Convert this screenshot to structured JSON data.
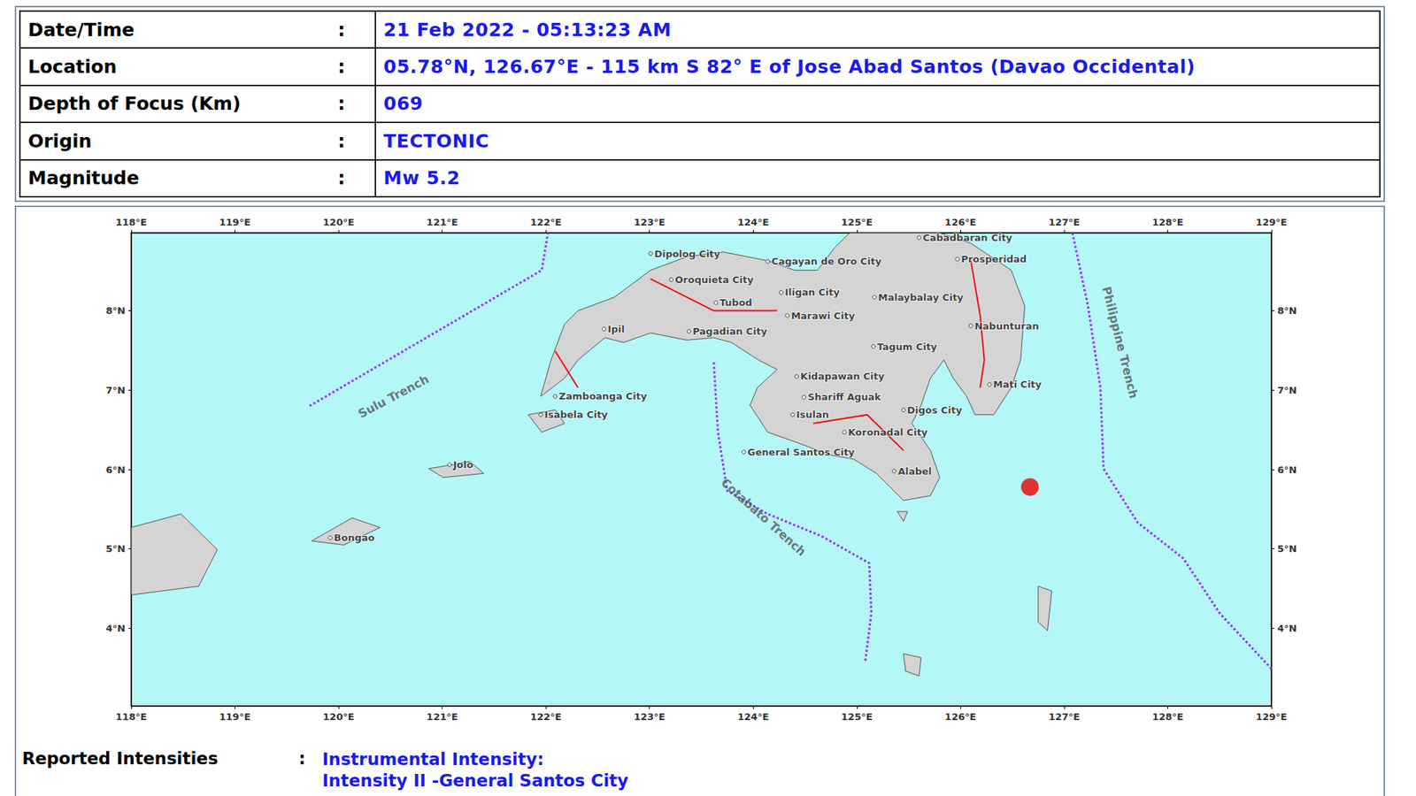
{
  "header": {
    "separator": ":",
    "rows": [
      {
        "label": "Date/Time",
        "value": "21 Feb 2022 - 05:13:23 AM"
      },
      {
        "label": "Location",
        "value": "05.78°N, 126.67°E - 115 km S 82° E of Jose Abad Santos (Davao Occidental)"
      },
      {
        "label": "Depth of Focus (Km)",
        "value": "069"
      },
      {
        "label": "Origin",
        "value": "TECTONIC"
      },
      {
        "label": "Magnitude",
        "value": "Mw 5.2"
      }
    ]
  },
  "chart_data": {
    "type": "map",
    "xlim": [
      118,
      129
    ],
    "xticks": [
      {
        "value": 118,
        "label": "118°E"
      },
      {
        "value": 119,
        "label": "119°E"
      },
      {
        "value": 120,
        "label": "120°E"
      },
      {
        "value": 121,
        "label": "121°E"
      },
      {
        "value": 122,
        "label": "122°E"
      },
      {
        "value": 123,
        "label": "123°E"
      },
      {
        "value": 124,
        "label": "124°E"
      },
      {
        "value": 125,
        "label": "125°E"
      },
      {
        "value": 126,
        "label": "126°E"
      },
      {
        "value": 127,
        "label": "127°E"
      },
      {
        "value": 128,
        "label": "128°E"
      },
      {
        "value": 129,
        "label": "129°E"
      }
    ],
    "ylim": [
      3.02,
      8.98
    ],
    "yticks": [
      {
        "value": 4,
        "label": "4°N"
      },
      {
        "value": 5,
        "label": "5°N"
      },
      {
        "value": 6,
        "label": "6°N"
      },
      {
        "value": 7,
        "label": "7°N"
      },
      {
        "value": 8,
        "label": "8°N"
      }
    ],
    "sea_color": "#b4f7f7",
    "land_color": "#d4d4d4",
    "epicenter": {
      "x": 126.67,
      "y": 5.78,
      "color": "#ee0000"
    },
    "land": [
      [
        [
          121.95,
          6.92
        ],
        [
          122.05,
          7.38
        ],
        [
          122.18,
          7.83
        ],
        [
          122.31,
          8.0
        ],
        [
          122.66,
          8.17
        ],
        [
          123.01,
          8.51
        ],
        [
          123.36,
          8.68
        ],
        [
          123.71,
          8.74
        ],
        [
          124.14,
          8.63
        ],
        [
          124.4,
          8.51
        ],
        [
          124.62,
          8.51
        ],
        [
          124.79,
          8.8
        ],
        [
          124.93,
          8.98
        ],
        [
          125.8,
          8.98
        ],
        [
          126.1,
          8.85
        ],
        [
          126.49,
          8.51
        ],
        [
          126.62,
          8.06
        ],
        [
          126.58,
          7.38
        ],
        [
          126.49,
          7.03
        ],
        [
          126.32,
          6.69
        ],
        [
          126.14,
          6.69
        ],
        [
          126.06,
          6.92
        ],
        [
          125.93,
          7.15
        ],
        [
          125.84,
          7.38
        ],
        [
          125.71,
          7.15
        ],
        [
          125.62,
          6.81
        ],
        [
          125.53,
          6.58
        ],
        [
          125.71,
          6.24
        ],
        [
          125.8,
          5.9
        ],
        [
          125.71,
          5.67
        ],
        [
          125.45,
          5.61
        ],
        [
          125.32,
          5.78
        ],
        [
          125.19,
          5.95
        ],
        [
          124.97,
          6.13
        ],
        [
          124.75,
          6.18
        ],
        [
          124.4,
          6.35
        ],
        [
          124.14,
          6.47
        ],
        [
          123.97,
          6.81
        ],
        [
          124.04,
          7.03
        ],
        [
          124.23,
          7.26
        ],
        [
          124.05,
          7.38
        ],
        [
          123.79,
          7.6
        ],
        [
          123.62,
          7.66
        ],
        [
          123.36,
          7.63
        ],
        [
          123.01,
          7.72
        ],
        [
          122.75,
          7.6
        ],
        [
          122.57,
          7.66
        ],
        [
          122.31,
          7.38
        ],
        [
          122.18,
          7.15
        ]
      ],
      [
        [
          121.83,
          6.69
        ],
        [
          122.09,
          6.75
        ],
        [
          122.18,
          6.58
        ],
        [
          121.96,
          6.47
        ]
      ],
      [
        [
          120.87,
          6.01
        ],
        [
          121.27,
          6.1
        ],
        [
          121.4,
          5.95
        ],
        [
          121.01,
          5.9
        ]
      ],
      [
        [
          119.74,
          5.1
        ],
        [
          120.13,
          5.39
        ],
        [
          120.4,
          5.27
        ],
        [
          120.05,
          5.05
        ]
      ],
      [
        [
          118.0,
          5.27
        ],
        [
          118.48,
          5.44
        ],
        [
          118.83,
          4.99
        ],
        [
          118.65,
          4.53
        ],
        [
          118.0,
          4.42
        ]
      ],
      [
        [
          126.75,
          4.53
        ],
        [
          126.88,
          4.47
        ],
        [
          126.84,
          3.97
        ],
        [
          126.75,
          4.08
        ]
      ],
      [
        [
          125.45,
          3.68
        ],
        [
          125.62,
          3.63
        ],
        [
          125.6,
          3.4
        ],
        [
          125.47,
          3.46
        ]
      ],
      [
        [
          125.39,
          5.47
        ],
        [
          125.49,
          5.47
        ],
        [
          125.45,
          5.35
        ]
      ]
    ],
    "faults": [
      [
        [
          126.1,
          8.63
        ],
        [
          126.19,
          7.94
        ],
        [
          126.23,
          7.38
        ],
        [
          126.19,
          7.03
        ]
      ],
      [
        [
          123.01,
          8.4
        ],
        [
          123.62,
          8.0
        ],
        [
          124.23,
          8.0
        ]
      ],
      [
        [
          124.58,
          6.58
        ],
        [
          125.1,
          6.69
        ],
        [
          125.45,
          6.24
        ]
      ],
      [
        [
          122.09,
          7.49
        ],
        [
          122.31,
          7.03
        ]
      ]
    ],
    "trenches": [
      {
        "name": "Sulu Trench",
        "color": "#9933ff",
        "label_at": [
          120.53,
          6.92
        ],
        "points": [
          [
            119.72,
            6.8
          ],
          [
            121.96,
            8.51
          ],
          [
            122.02,
            8.98
          ]
        ]
      },
      {
        "name": "Cotabato Trench",
        "color": "#9933ff",
        "label_at": [
          124.1,
          5.4
        ],
        "points": [
          [
            123.62,
            7.35
          ],
          [
            123.66,
            6.47
          ],
          [
            123.75,
            5.73
          ],
          [
            124.14,
            5.44
          ],
          [
            124.66,
            5.16
          ],
          [
            125.12,
            4.82
          ],
          [
            125.14,
            4.19
          ],
          [
            125.08,
            3.57
          ]
        ]
      },
      {
        "name": "Philippine Trench",
        "color": "#9933ff",
        "label_at": [
          127.54,
          7.6
        ],
        "points": [
          [
            127.08,
            8.98
          ],
          [
            127.23,
            8.06
          ],
          [
            127.35,
            7.03
          ],
          [
            127.38,
            6.01
          ],
          [
            127.71,
            5.33
          ],
          [
            128.15,
            4.88
          ],
          [
            128.5,
            4.19
          ],
          [
            129.0,
            3.49
          ]
        ]
      }
    ],
    "cities": [
      {
        "name": "Dipolog City",
        "x": 123.01,
        "y": 8.72
      },
      {
        "name": "Cagayan de Oro City",
        "x": 124.14,
        "y": 8.62
      },
      {
        "name": "Oroquieta City",
        "x": 123.21,
        "y": 8.39
      },
      {
        "name": "Iligan City",
        "x": 124.27,
        "y": 8.23
      },
      {
        "name": "Tubod",
        "x": 123.64,
        "y": 8.1
      },
      {
        "name": "Marawi City",
        "x": 124.33,
        "y": 7.94
      },
      {
        "name": "Malaybalay City",
        "x": 125.17,
        "y": 8.17
      },
      {
        "name": "Cabadbaran City",
        "x": 125.6,
        "y": 8.92
      },
      {
        "name": "Prosperidad",
        "x": 125.97,
        "y": 8.65
      },
      {
        "name": "Nabunturan",
        "x": 126.1,
        "y": 7.81
      },
      {
        "name": "Ipil",
        "x": 122.56,
        "y": 7.77
      },
      {
        "name": "Pagadian City",
        "x": 123.38,
        "y": 7.74
      },
      {
        "name": "Tagum City",
        "x": 125.16,
        "y": 7.55
      },
      {
        "name": "Kidapawan City",
        "x": 124.42,
        "y": 7.17
      },
      {
        "name": "Mati City",
        "x": 126.28,
        "y": 7.07
      },
      {
        "name": "Zamboanga City",
        "x": 122.09,
        "y": 6.92
      },
      {
        "name": "Shariff Aguak",
        "x": 124.49,
        "y": 6.91
      },
      {
        "name": "Isabela City",
        "x": 121.95,
        "y": 6.69
      },
      {
        "name": "Digos City",
        "x": 125.45,
        "y": 6.75
      },
      {
        "name": "Isulan",
        "x": 124.38,
        "y": 6.69
      },
      {
        "name": "Koronadal City",
        "x": 124.88,
        "y": 6.47
      },
      {
        "name": "General Santos City",
        "x": 123.91,
        "y": 6.22
      },
      {
        "name": "Alabel",
        "x": 125.36,
        "y": 5.98
      },
      {
        "name": "Jolo",
        "x": 121.07,
        "y": 6.06
      },
      {
        "name": "Bongao",
        "x": 119.92,
        "y": 5.14
      }
    ]
  },
  "footer": {
    "label": "Reported Intensities",
    "separator": ":",
    "lines": [
      "Instrumental Intensity:",
      "Intensity II -General Santos City"
    ]
  }
}
